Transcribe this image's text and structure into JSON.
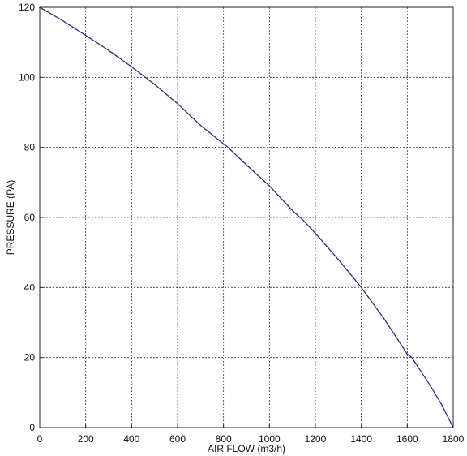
{
  "chart_data": {
    "type": "line",
    "title": "",
    "xlabel": "AIR FLOW (m3/h)",
    "ylabel": "PRESSURE (PA)",
    "xlim": [
      0,
      1800
    ],
    "ylim": [
      0,
      120
    ],
    "x_ticks": [
      0,
      200,
      400,
      600,
      800,
      1000,
      1200,
      1400,
      1600,
      1800
    ],
    "y_ticks": [
      0,
      20,
      40,
      60,
      80,
      100,
      120
    ],
    "grid": true,
    "grid_style": "dotted",
    "series": [
      {
        "color": "#2b2f7a",
        "x": [
          0,
          100,
          200,
          300,
          400,
          460,
          500,
          600,
          700,
          800,
          820,
          900,
          1000,
          1100,
          1150,
          1200,
          1300,
          1400,
          1500,
          1600,
          1620,
          1700,
          1750,
          1800
        ],
        "y": [
          120,
          116.2,
          112,
          107.7,
          103,
          100,
          98,
          92.5,
          86.3,
          81,
          80,
          75,
          69,
          62,
          59,
          55.5,
          48,
          40,
          31,
          21,
          20,
          12,
          6.5,
          0
        ]
      }
    ]
  }
}
